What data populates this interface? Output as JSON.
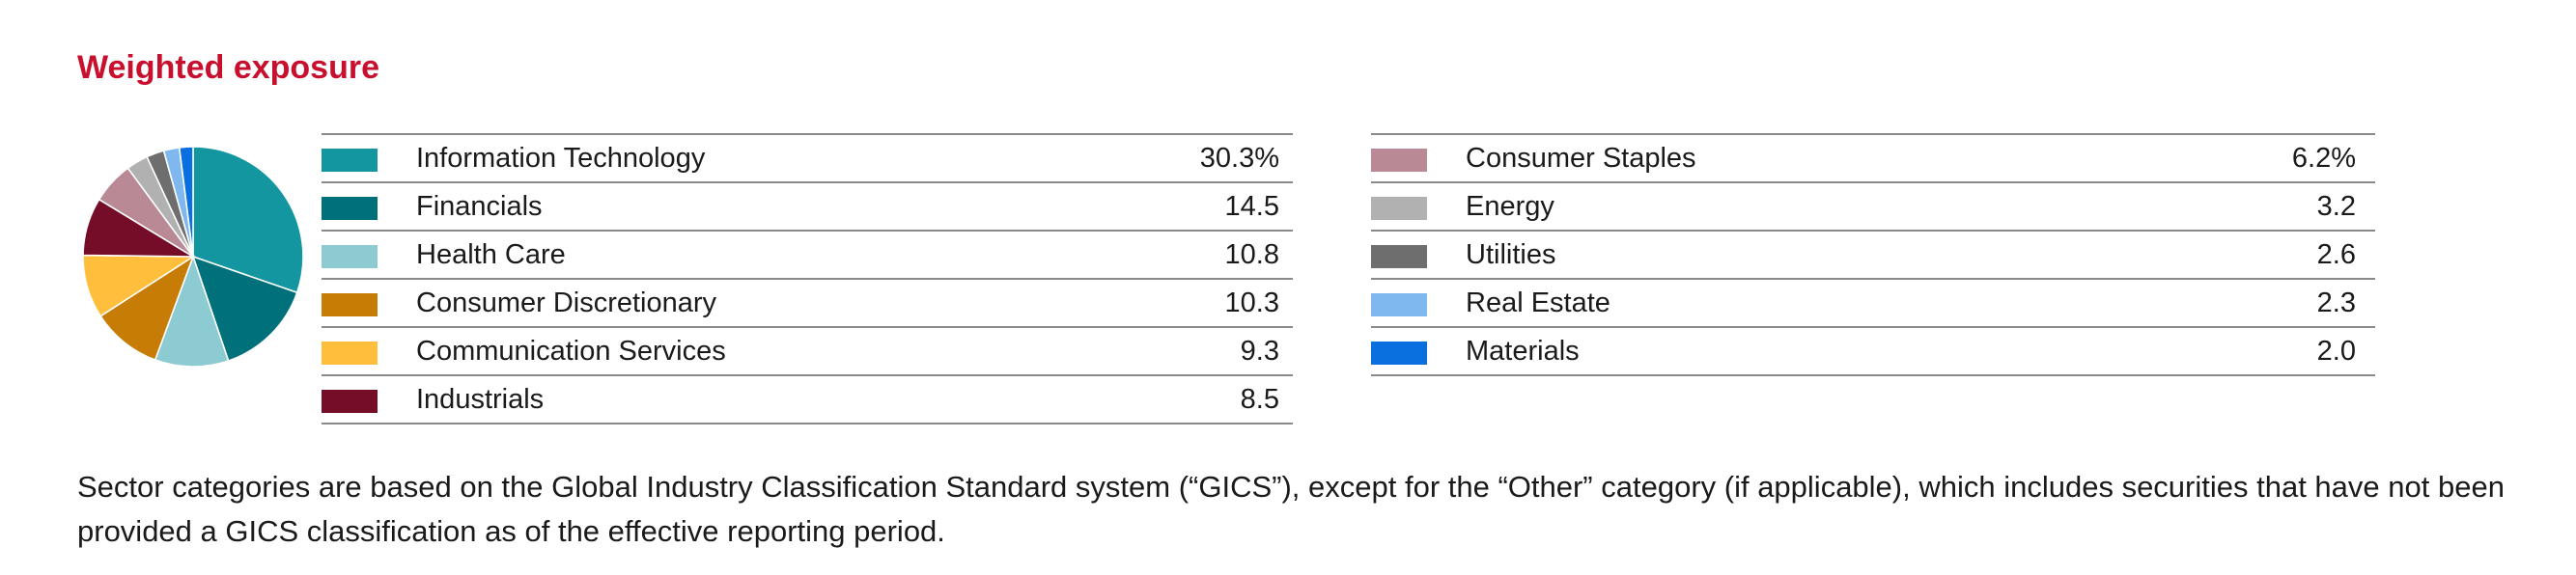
{
  "title": "Weighted exposure",
  "chart_data": {
    "type": "pie",
    "title": "Weighted exposure",
    "unit": "%",
    "slices": [
      {
        "name": "Information Technology",
        "value": 30.3,
        "display": "30.3%",
        "color": "#1396a0"
      },
      {
        "name": "Financials",
        "value": 14.5,
        "display": "14.5",
        "color": "#00707a"
      },
      {
        "name": "Health Care",
        "value": 10.8,
        "display": "10.8",
        "color": "#8ccbd1"
      },
      {
        "name": "Consumer Discretionary",
        "value": 10.3,
        "display": "10.3",
        "color": "#c77c05"
      },
      {
        "name": "Communication Services",
        "value": 9.3,
        "display": "9.3",
        "color": "#ffbf3c"
      },
      {
        "name": "Industrials",
        "value": 8.5,
        "display": "8.5",
        "color": "#760d28"
      },
      {
        "name": "Consumer Staples",
        "value": 6.2,
        "display": "6.2%",
        "color": "#b98a96"
      },
      {
        "name": "Energy",
        "value": 3.2,
        "display": "3.2",
        "color": "#b1b1b1"
      },
      {
        "name": "Utilities",
        "value": 2.6,
        "display": "2.6",
        "color": "#6e6e6e"
      },
      {
        "name": "Real Estate",
        "value": 2.3,
        "display": "2.3",
        "color": "#7fb7ef"
      },
      {
        "name": "Materials",
        "value": 2.0,
        "display": "2.0",
        "color": "#0a70e0"
      }
    ]
  },
  "footnote": "Sector categories are based on the Global Industry Classification Standard system (“GICS”), except for the “Other” category (if applicable), which includes securities that have not been provided a GICS classification as of the effective reporting period."
}
